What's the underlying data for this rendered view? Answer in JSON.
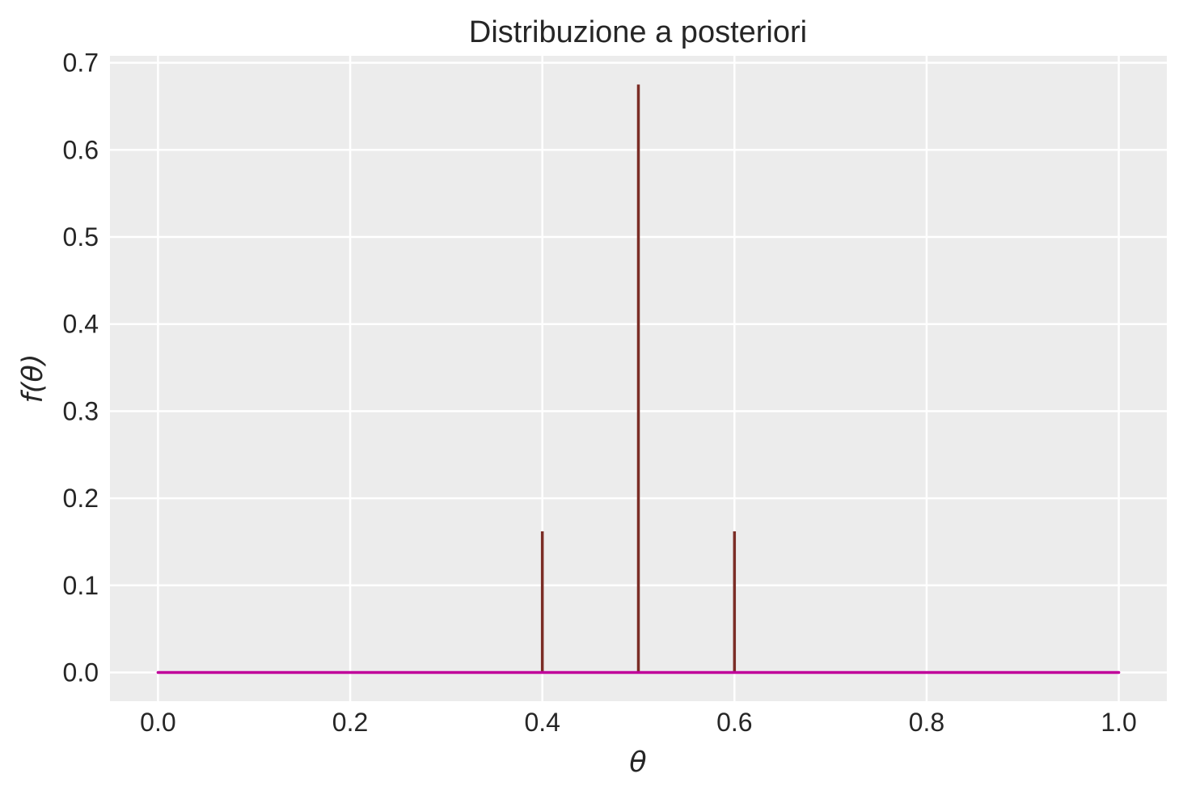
{
  "chart_data": {
    "type": "stem",
    "title": "Distribuzione a posteriori",
    "xlabel": "θ",
    "ylabel": "f(θ)",
    "xlim": [
      -0.05,
      1.05
    ],
    "ylim": [
      -0.033,
      0.708
    ],
    "x_ticks": [
      0.0,
      0.2,
      0.4,
      0.6,
      0.8,
      1.0
    ],
    "x_tick_labels": [
      "0.0",
      "0.2",
      "0.4",
      "0.6",
      "0.8",
      "1.0"
    ],
    "y_ticks": [
      0.0,
      0.1,
      0.2,
      0.3,
      0.4,
      0.5,
      0.6,
      0.7
    ],
    "y_tick_labels": [
      "0.0",
      "0.1",
      "0.2",
      "0.3",
      "0.4",
      "0.5",
      "0.6",
      "0.7"
    ],
    "grid": true,
    "stems": {
      "x": [
        0.4,
        0.5,
        0.6
      ],
      "y": [
        0.162,
        0.675,
        0.162
      ],
      "color": "#7b2d26"
    },
    "baseline": {
      "x": [
        0.0,
        1.0
      ],
      "y": [
        0.0,
        0.0
      ],
      "color": "#c0009a"
    },
    "colors": {
      "plot_background": "#ececec",
      "grid": "#ffffff",
      "text": "#262626"
    }
  }
}
